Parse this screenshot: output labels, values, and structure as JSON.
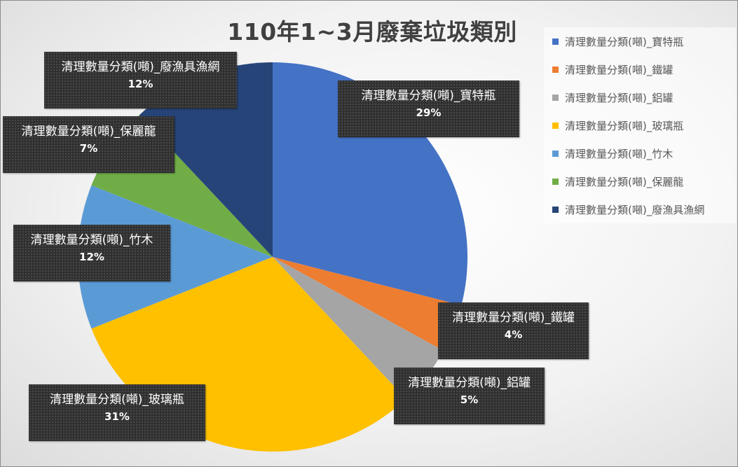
{
  "chart_data": {
    "type": "pie",
    "title": "110年1~3月廢棄垃圾類別",
    "categories": [
      "清理數量分類(噸)_寶特瓶",
      "清理數量分類(噸)_鐵罐",
      "清理數量分類(噸)_鋁罐",
      "清理數量分類(噸)_玻璃瓶",
      "清理數量分類(噸)_竹木",
      "清理數量分類(噸)_保麗龍",
      "清理數量分類(噸)_廢漁具漁網"
    ],
    "values": [
      29,
      4,
      5,
      31,
      12,
      7,
      12
    ],
    "labels": [
      "29%",
      "4%",
      "5%",
      "31%",
      "12%",
      "7%",
      "12%"
    ],
    "colors": [
      "#4472C4",
      "#ED7D31",
      "#A5A5A5",
      "#FFC000",
      "#5B9BD5",
      "#70AD47",
      "#264478"
    ],
    "legend_position": "right",
    "start_angle": "12 o'clock, clockwise"
  }
}
